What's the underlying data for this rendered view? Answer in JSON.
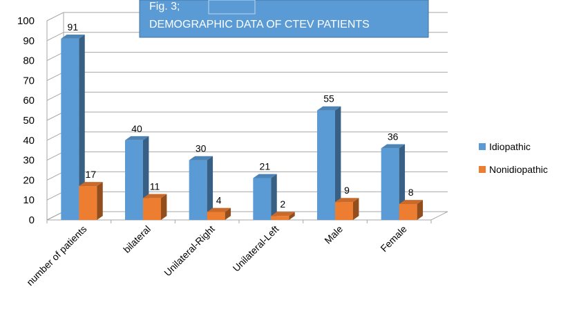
{
  "chart_data": {
    "type": "bar",
    "title_line1": "Fig. 3;",
    "title_line2": "DEMOGRAPHIC DATA OF  CTEV PATIENTS",
    "categories": [
      "number of patients",
      "bilateral",
      "Unilateral-Right",
      "Unilateral-Left",
      "Male",
      "Female"
    ],
    "series": [
      {
        "name": "Idiopathic",
        "values": [
          91,
          40,
          30,
          21,
          55,
          36
        ],
        "color": "#5b9bd5"
      },
      {
        "name": "Nonidiopathic",
        "values": [
          17,
          11,
          4,
          2,
          9,
          8
        ],
        "color": "#ed7d31"
      }
    ],
    "ylim": [
      0,
      100
    ],
    "yticks": [
      0,
      10,
      20,
      30,
      40,
      50,
      60,
      70,
      80,
      90,
      100
    ],
    "grid": true,
    "legend": "right",
    "style": "3d-clustered-column",
    "title_box_color": "#5b9bd5"
  }
}
